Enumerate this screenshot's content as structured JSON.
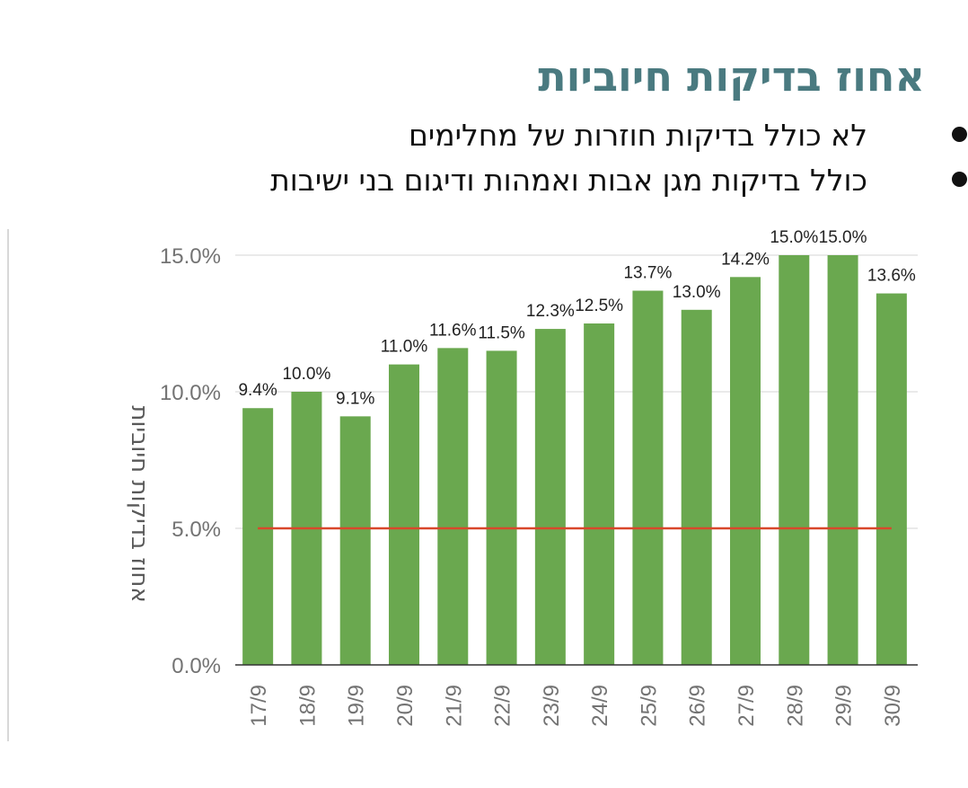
{
  "title": "אחוז בדיקות חיוביות",
  "bullets": [
    {
      "text": "לא כולל בדיקות חוזרות של מחלימים"
    },
    {
      "text": "כולל בדיקות מגן אבות ואמהות ודיגום בני ישיבות"
    }
  ],
  "chart_data": {
    "type": "bar",
    "ylabel": "אחוז בדיקות חיוביות",
    "xlabel": "",
    "categories": [
      "17/9",
      "18/9",
      "19/9",
      "20/9",
      "21/9",
      "22/9",
      "23/9",
      "24/9",
      "25/9",
      "26/9",
      "27/9",
      "28/9",
      "29/9",
      "30/9"
    ],
    "values": [
      9.4,
      10.0,
      9.1,
      11.0,
      11.6,
      11.5,
      12.3,
      12.5,
      13.7,
      13.0,
      14.2,
      15.0,
      15.0,
      13.6
    ],
    "data_labels": [
      "9.4%",
      "10.0%",
      "9.1%",
      "11.0%",
      "11.6%",
      "11.5%",
      "12.3%",
      "12.5%",
      "13.7%",
      "13.0%",
      "14.2%",
      "15.0%",
      "15.0%",
      "13.6%"
    ],
    "ylim": [
      0,
      16.5
    ],
    "yticks": [
      0,
      5,
      10,
      15
    ],
    "ytick_labels": [
      "0.0%",
      "5.0%",
      "10.0%",
      "15.0%"
    ],
    "reference_line": {
      "value": 5.0,
      "color": "#d9472b"
    },
    "bar_color": "#6aa84f",
    "grid": true
  }
}
